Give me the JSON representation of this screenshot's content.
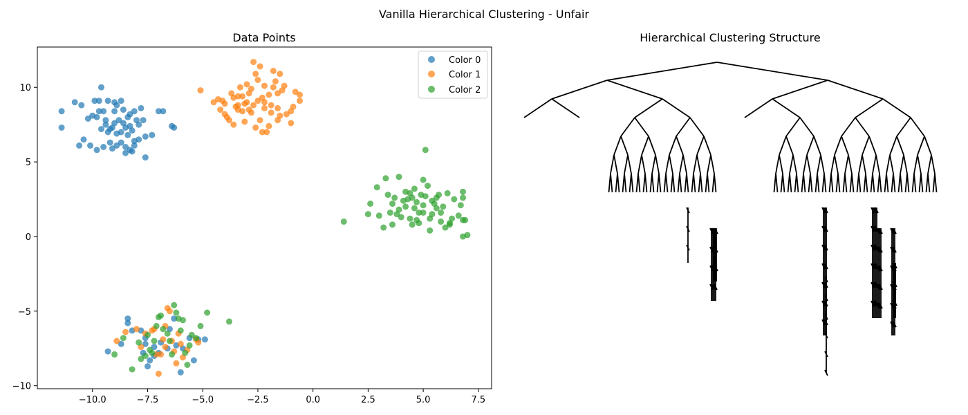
{
  "figure": {
    "suptitle": "Vanilla Hierarchical Clustering - Unfair"
  },
  "chart_data": [
    {
      "type": "scatter",
      "title": "Data Points",
      "xlabel": "",
      "ylabel": "",
      "xlim": [
        -12.5,
        8.1
      ],
      "ylim": [
        -10.2,
        12.7
      ],
      "xticks": [
        -10.0,
        -7.5,
        -5.0,
        -2.5,
        0.0,
        2.5,
        5.0,
        7.5
      ],
      "yticks": [
        -10,
        -5,
        0,
        5,
        10
      ],
      "xtick_labels": [
        "−10.0",
        "−7.5",
        "−5.0",
        "−2.5",
        "0.0",
        "2.5",
        "5.0",
        "7.5"
      ],
      "ytick_labels": [
        "−10",
        "−5",
        "0",
        "5",
        "10"
      ],
      "grid": false,
      "legend": "top-right",
      "series": [
        {
          "name": "Color 0",
          "color": "#1f77b4",
          "points": [
            [
              -11.4,
              8.4
            ],
            [
              -11.4,
              7.3
            ],
            [
              -10.8,
              9.0
            ],
            [
              -10.5,
              8.8
            ],
            [
              -10.2,
              7.9
            ],
            [
              -10.0,
              8.1
            ],
            [
              -9.8,
              8.0
            ],
            [
              -9.7,
              9.1
            ],
            [
              -9.9,
              9.1
            ],
            [
              -9.6,
              10.0
            ],
            [
              -9.7,
              8.4
            ],
            [
              -9.5,
              8.4
            ],
            [
              -9.3,
              9.1
            ],
            [
              -9.4,
              7.5
            ],
            [
              -9.2,
              7.2
            ],
            [
              -9.0,
              9.0
            ],
            [
              -8.9,
              8.8
            ],
            [
              -8.7,
              9.1
            ],
            [
              -8.6,
              8.5
            ],
            [
              -8.3,
              8.2
            ],
            [
              -8.1,
              8.4
            ],
            [
              -7.8,
              8.6
            ],
            [
              -9.6,
              7.2
            ],
            [
              -9.3,
              7.0
            ],
            [
              -9.1,
              7.3
            ],
            [
              -8.9,
              6.9
            ],
            [
              -8.7,
              7.0
            ],
            [
              -8.5,
              7.3
            ],
            [
              -8.3,
              7.4
            ],
            [
              -8.2,
              7.1
            ],
            [
              -8.0,
              7.8
            ],
            [
              -7.9,
              7.5
            ],
            [
              -7.7,
              7.8
            ],
            [
              -7.6,
              6.7
            ],
            [
              -7.3,
              6.8
            ],
            [
              -9.2,
              6.3
            ],
            [
              -8.9,
              6.1
            ],
            [
              -8.7,
              6.3
            ],
            [
              -8.5,
              6.0
            ],
            [
              -8.3,
              5.8
            ],
            [
              -8.1,
              6.1
            ],
            [
              -9.5,
              6.0
            ],
            [
              -9.8,
              5.8
            ],
            [
              -10.1,
              6.1
            ],
            [
              -10.6,
              6.1
            ],
            [
              -8.5,
              5.6
            ],
            [
              -7.6,
              5.3
            ],
            [
              -6.4,
              7.4
            ],
            [
              -6.3,
              7.3
            ],
            [
              -6.8,
              8.4
            ],
            [
              -7.0,
              8.4
            ],
            [
              -8.8,
              7.8
            ],
            [
              -8.6,
              7.6
            ],
            [
              -8.4,
              8.0
            ],
            [
              -9.0,
              7.6
            ],
            [
              -9.4,
              7.8
            ],
            [
              -10.4,
              6.5
            ],
            [
              -7.9,
              6.5
            ],
            [
              -8.1,
              6.4
            ],
            [
              -8.2,
              5.7
            ],
            [
              -9.1,
              5.9
            ],
            [
              -9.0,
              8.4
            ],
            [
              -8.4,
              6.8
            ],
            [
              -9.3,
              -7.7
            ],
            [
              -8.7,
              -7.2
            ],
            [
              -8.4,
              -5.5
            ],
            [
              -8.4,
              -5.8
            ],
            [
              -8.2,
              -6.3
            ],
            [
              -7.8,
              -6.3
            ],
            [
              -7.6,
              -6.8
            ],
            [
              -7.7,
              -7.8
            ],
            [
              -7.5,
              -8.7
            ],
            [
              -7.4,
              -8.3
            ],
            [
              -7.2,
              -8.0
            ],
            [
              -7.0,
              -7.8
            ],
            [
              -6.6,
              -7.5
            ],
            [
              -6.3,
              -5.5
            ],
            [
              -6.2,
              -7.3
            ],
            [
              -6.0,
              -9.1
            ],
            [
              -5.9,
              -7.5
            ],
            [
              -5.6,
              -6.8
            ],
            [
              -5.4,
              -8.3
            ],
            [
              -5.2,
              -6.9
            ],
            [
              -4.9,
              -6.9
            ],
            [
              -7.2,
              -7.4
            ],
            [
              -6.9,
              -7.1
            ],
            [
              -6.5,
              -6.2
            ],
            [
              -7.6,
              -7.2
            ]
          ]
        },
        {
          "name": "Color 1",
          "color": "#ff7f0e",
          "points": [
            [
              -5.1,
              9.8
            ],
            [
              -4.5,
              9.0
            ],
            [
              -4.3,
              9.2
            ],
            [
              -4.1,
              9.1
            ],
            [
              -4.0,
              8.2
            ],
            [
              -3.9,
              8.0
            ],
            [
              -3.8,
              7.8
            ],
            [
              -3.7,
              9.6
            ],
            [
              -3.6,
              9.3
            ],
            [
              -3.5,
              8.7
            ],
            [
              -3.4,
              8.5
            ],
            [
              -3.3,
              10.0
            ],
            [
              -3.2,
              9.4
            ],
            [
              -3.1,
              8.9
            ],
            [
              -3.0,
              10.2
            ],
            [
              -2.9,
              9.6
            ],
            [
              -2.8,
              8.3
            ],
            [
              -2.7,
              11.7
            ],
            [
              -2.6,
              10.9
            ],
            [
              -2.5,
              10.5
            ],
            [
              -2.4,
              11.4
            ],
            [
              -2.3,
              9.3
            ],
            [
              -2.2,
              8.6
            ],
            [
              -2.1,
              7.0
            ],
            [
              -2.0,
              7.4
            ],
            [
              -1.9,
              8.8
            ],
            [
              -1.8,
              11.1
            ],
            [
              -1.7,
              10.4
            ],
            [
              -1.6,
              9.6
            ],
            [
              -1.5,
              10.9
            ],
            [
              -1.4,
              9.8
            ],
            [
              -1.3,
              10.1
            ],
            [
              -1.2,
              8.2
            ],
            [
              -1.0,
              8.4
            ],
            [
              -0.9,
              8.7
            ],
            [
              -0.8,
              9.7
            ],
            [
              -0.6,
              9.1
            ],
            [
              -0.6,
              9.5
            ],
            [
              -1.0,
              7.6
            ],
            [
              -1.6,
              7.8
            ],
            [
              -2.3,
              7.0
            ],
            [
              -2.4,
              7.8
            ],
            [
              -2.6,
              7.3
            ],
            [
              -3.2,
              8.4
            ],
            [
              -3.4,
              8.8
            ],
            [
              -3.6,
              7.5
            ],
            [
              -4.0,
              8.9
            ],
            [
              -4.2,
              8.5
            ],
            [
              -2.9,
              8.5
            ],
            [
              -2.2,
              9.0
            ],
            [
              -2.0,
              9.5
            ],
            [
              -1.8,
              10.0
            ],
            [
              -2.5,
              9.1
            ],
            [
              -3.1,
              7.7
            ],
            [
              -1.5,
              8.1
            ],
            [
              -2.7,
              8.8
            ],
            [
              -3.0,
              9.0
            ],
            [
              -1.9,
              8.3
            ],
            [
              -2.2,
              10.1
            ],
            [
              -3.4,
              9.4
            ],
            [
              -2.8,
              9.9
            ],
            [
              -1.6,
              8.6
            ],
            [
              -8.9,
              -7.0
            ],
            [
              -8.5,
              -6.4
            ],
            [
              -8.0,
              -6.2
            ],
            [
              -7.6,
              -6.5
            ],
            [
              -7.3,
              -6.3
            ],
            [
              -7.2,
              -6.2
            ],
            [
              -7.0,
              -9.2
            ],
            [
              -6.9,
              -7.9
            ],
            [
              -6.7,
              -7.4
            ],
            [
              -6.6,
              -4.8
            ],
            [
              -6.5,
              -5.0
            ],
            [
              -6.3,
              -7.7
            ],
            [
              -6.2,
              -8.5
            ],
            [
              -6.0,
              -7.2
            ],
            [
              -5.9,
              -8.1
            ],
            [
              -5.7,
              -7.6
            ],
            [
              -5.3,
              -6.9
            ],
            [
              -5.2,
              -7.1
            ],
            [
              -6.8,
              -6.9
            ],
            [
              -7.1,
              -7.9
            ],
            [
              -6.4,
              -7.0
            ],
            [
              -7.8,
              -7.4
            ],
            [
              -6.1,
              -6.5
            ],
            [
              -6.7,
              -6.0
            ]
          ]
        },
        {
          "name": "Color 2",
          "color": "#2ca02c",
          "points": [
            [
              1.4,
              1.0
            ],
            [
              2.5,
              1.5
            ],
            [
              2.6,
              2.2
            ],
            [
              2.9,
              3.3
            ],
            [
              3.0,
              1.4
            ],
            [
              3.2,
              0.6
            ],
            [
              3.3,
              3.9
            ],
            [
              3.4,
              2.8
            ],
            [
              3.6,
              2.2
            ],
            [
              3.6,
              0.8
            ],
            [
              3.7,
              2.6
            ],
            [
              3.9,
              4.0
            ],
            [
              3.9,
              1.8
            ],
            [
              4.0,
              1.3
            ],
            [
              4.1,
              2.4
            ],
            [
              4.2,
              3.0
            ],
            [
              4.3,
              2.5
            ],
            [
              4.4,
              1.2
            ],
            [
              4.5,
              0.8
            ],
            [
              4.6,
              3.2
            ],
            [
              4.6,
              1.9
            ],
            [
              4.7,
              2.3
            ],
            [
              4.8,
              0.9
            ],
            [
              4.9,
              2.8
            ],
            [
              5.0,
              3.8
            ],
            [
              5.0,
              1.6
            ],
            [
              5.1,
              2.7
            ],
            [
              5.1,
              5.8
            ],
            [
              5.2,
              3.4
            ],
            [
              5.3,
              1.2
            ],
            [
              5.3,
              0.4
            ],
            [
              5.4,
              2.4
            ],
            [
              5.5,
              2.2
            ],
            [
              5.6,
              1.9
            ],
            [
              5.7,
              2.8
            ],
            [
              5.8,
              1.6
            ],
            [
              5.9,
              2.0
            ],
            [
              6.0,
              0.6
            ],
            [
              6.1,
              2.9
            ],
            [
              6.2,
              0.8
            ],
            [
              6.3,
              1.2
            ],
            [
              6.4,
              2.5
            ],
            [
              6.6,
              1.4
            ],
            [
              6.7,
              2.1
            ],
            [
              6.8,
              3.0
            ],
            [
              6.8,
              2.6
            ],
            [
              6.8,
              1.1
            ],
            [
              6.8,
              0.0
            ],
            [
              7.0,
              0.1
            ],
            [
              6.9,
              1.1
            ],
            [
              4.2,
              2.0
            ],
            [
              4.8,
              1.6
            ],
            [
              5.0,
              2.1
            ],
            [
              4.5,
              2.6
            ],
            [
              5.6,
              2.6
            ],
            [
              3.8,
              1.5
            ],
            [
              4.4,
              2.9
            ],
            [
              5.4,
              1.5
            ],
            [
              4.7,
              1.1
            ],
            [
              3.5,
              1.6
            ],
            [
              6.2,
              0.9
            ],
            [
              5.8,
              1.0
            ],
            [
              -9.0,
              -7.9
            ],
            [
              -8.6,
              -6.8
            ],
            [
              -8.2,
              -8.9
            ],
            [
              -7.9,
              -7.1
            ],
            [
              -7.6,
              -8.0
            ],
            [
              -7.4,
              -7.6
            ],
            [
              -7.3,
              -7.8
            ],
            [
              -7.1,
              -6.0
            ],
            [
              -7.0,
              -5.4
            ],
            [
              -6.9,
              -5.3
            ],
            [
              -6.8,
              -6.2
            ],
            [
              -6.6,
              -6.5
            ],
            [
              -6.5,
              -7.0
            ],
            [
              -6.3,
              -4.6
            ],
            [
              -6.2,
              -5.1
            ],
            [
              -6.1,
              -5.5
            ],
            [
              -5.9,
              -5.6
            ],
            [
              -5.8,
              -7.8
            ],
            [
              -5.7,
              -8.6
            ],
            [
              -5.6,
              -7.3
            ],
            [
              -5.3,
              -6.8
            ],
            [
              -5.1,
              -6.0
            ],
            [
              -4.8,
              -5.1
            ],
            [
              -3.8,
              -5.7
            ],
            [
              -7.8,
              -8.2
            ],
            [
              -6.4,
              -7.9
            ],
            [
              -7.2,
              -7.0
            ],
            [
              -6.0,
              -6.3
            ],
            [
              -5.5,
              -6.6
            ],
            [
              -7.5,
              -6.6
            ]
          ]
        }
      ]
    },
    {
      "type": "tree",
      "title": "Hierarchical Clustering Structure"
    }
  ]
}
